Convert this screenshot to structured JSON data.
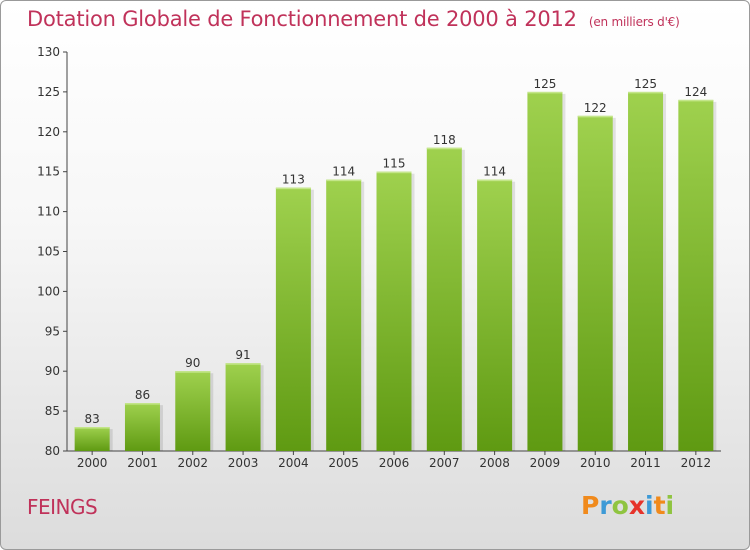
{
  "chart_data": {
    "type": "bar",
    "title": "Dotation Globale de Fonctionnement de 2000 à 2012",
    "unit_note": "(en milliers d'€)",
    "categories": [
      "2000",
      "2001",
      "2002",
      "2003",
      "2004",
      "2005",
      "2006",
      "2007",
      "2008",
      "2009",
      "2010",
      "2011",
      "2012"
    ],
    "values": [
      83,
      86,
      90,
      91,
      113,
      114,
      115,
      118,
      114,
      125,
      122,
      125,
      124
    ],
    "ylim": [
      80,
      130
    ],
    "yticks": [
      80,
      85,
      90,
      95,
      100,
      105,
      110,
      115,
      120,
      125,
      130
    ],
    "grid": false,
    "bar_color_top": "#9fd14e",
    "bar_color_bottom": "#5f9a12"
  },
  "footer": {
    "commune": "FEINGS",
    "logo_letters": [
      "P",
      "r",
      "o",
      "x",
      "i",
      "t",
      "i"
    ],
    "logo_colors": [
      "#f08a1c",
      "#3d9ad6",
      "#8fc440",
      "#e6332a",
      "#3d9ad6",
      "#f08a1c",
      "#8fc440"
    ]
  }
}
